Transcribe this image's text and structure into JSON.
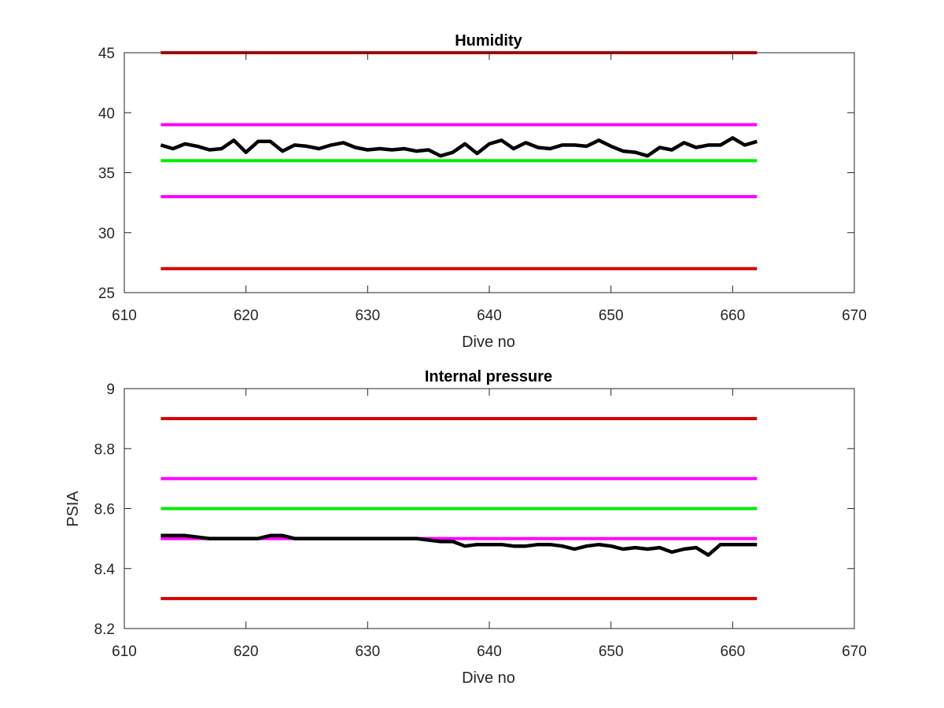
{
  "chart_data": [
    {
      "type": "line",
      "title": "Humidity",
      "xlabel": "Dive no",
      "ylabel": "",
      "xlim": [
        610,
        670
      ],
      "ylim": [
        25,
        45
      ],
      "xticks": [
        "610",
        "620",
        "630",
        "640",
        "650",
        "660",
        "670"
      ],
      "yticks": [
        "25",
        "30",
        "35",
        "40",
        "45"
      ],
      "grid": false,
      "x": [
        613,
        614,
        615,
        616,
        617,
        618,
        619,
        620,
        621,
        622,
        623,
        624,
        625,
        626,
        627,
        628,
        629,
        630,
        631,
        632,
        633,
        634,
        635,
        636,
        637,
        638,
        639,
        640,
        641,
        642,
        643,
        644,
        645,
        646,
        647,
        648,
        649,
        650,
        651,
        652,
        653,
        654,
        655,
        656,
        657,
        658,
        659,
        660,
        661,
        662
      ],
      "series": [
        {
          "color": "#000000",
          "values": [
            37.3,
            37.0,
            37.4,
            37.2,
            36.9,
            37.0,
            37.7,
            36.7,
            37.6,
            37.6,
            36.8,
            37.3,
            37.2,
            37.0,
            37.3,
            37.5,
            37.1,
            36.9,
            37.0,
            36.9,
            37.0,
            36.8,
            36.9,
            36.4,
            36.7,
            37.4,
            36.6,
            37.4,
            37.7,
            37.0,
            37.5,
            37.1,
            37.0,
            37.3,
            37.3,
            37.2,
            37.7,
            37.2,
            36.8,
            36.7,
            36.4,
            37.1,
            36.9,
            37.5,
            37.1,
            37.3,
            37.3,
            37.9,
            37.3,
            37.6
          ]
        },
        {
          "color": "#d40000",
          "x": [
            613,
            662
          ],
          "values": [
            45,
            45
          ]
        },
        {
          "color": "#ff00ff",
          "x": [
            613,
            662
          ],
          "values": [
            39,
            39
          ]
        },
        {
          "color": "#00ee00",
          "x": [
            613,
            662
          ],
          "values": [
            36,
            36
          ]
        },
        {
          "color": "#ff00ff",
          "x": [
            613,
            662
          ],
          "values": [
            33,
            33
          ]
        },
        {
          "color": "#d40000",
          "x": [
            613,
            662
          ],
          "values": [
            27,
            27
          ]
        }
      ]
    },
    {
      "type": "line",
      "title": "Internal pressure",
      "xlabel": "Dive no",
      "ylabel": "PSIA",
      "xlim": [
        610,
        670
      ],
      "ylim": [
        8.2,
        9.0
      ],
      "xticks": [
        "610",
        "620",
        "630",
        "640",
        "650",
        "660",
        "670"
      ],
      "yticks": [
        "8.2",
        "8.4",
        "8.6",
        "8.8",
        "9"
      ],
      "grid": false,
      "x": [
        613,
        614,
        615,
        616,
        617,
        618,
        619,
        620,
        621,
        622,
        623,
        624,
        625,
        626,
        627,
        628,
        629,
        630,
        631,
        632,
        633,
        634,
        635,
        636,
        637,
        638,
        639,
        640,
        641,
        642,
        643,
        644,
        645,
        646,
        647,
        648,
        649,
        650,
        651,
        652,
        653,
        654,
        655,
        656,
        657,
        658,
        659,
        660,
        661,
        662
      ],
      "series": [
        {
          "color": "#000000",
          "values": [
            8.51,
            8.51,
            8.51,
            8.505,
            8.5,
            8.5,
            8.5,
            8.5,
            8.5,
            8.51,
            8.51,
            8.5,
            8.5,
            8.5,
            8.5,
            8.5,
            8.5,
            8.5,
            8.5,
            8.5,
            8.5,
            8.5,
            8.495,
            8.49,
            8.49,
            8.475,
            8.48,
            8.48,
            8.48,
            8.475,
            8.475,
            8.48,
            8.48,
            8.475,
            8.465,
            8.475,
            8.48,
            8.475,
            8.465,
            8.47,
            8.465,
            8.47,
            8.455,
            8.465,
            8.47,
            8.445,
            8.48,
            8.48,
            8.48,
            8.48
          ]
        },
        {
          "color": "#d40000",
          "x": [
            613,
            662
          ],
          "values": [
            8.9,
            8.9
          ]
        },
        {
          "color": "#ff00ff",
          "x": [
            613,
            662
          ],
          "values": [
            8.7,
            8.7
          ]
        },
        {
          "color": "#00ee00",
          "x": [
            613,
            662
          ],
          "values": [
            8.6,
            8.6
          ]
        },
        {
          "color": "#ff00ff",
          "x": [
            613,
            662
          ],
          "values": [
            8.5,
            8.5
          ]
        },
        {
          "color": "#d40000",
          "x": [
            613,
            662
          ],
          "values": [
            8.3,
            8.3
          ]
        }
      ]
    }
  ]
}
